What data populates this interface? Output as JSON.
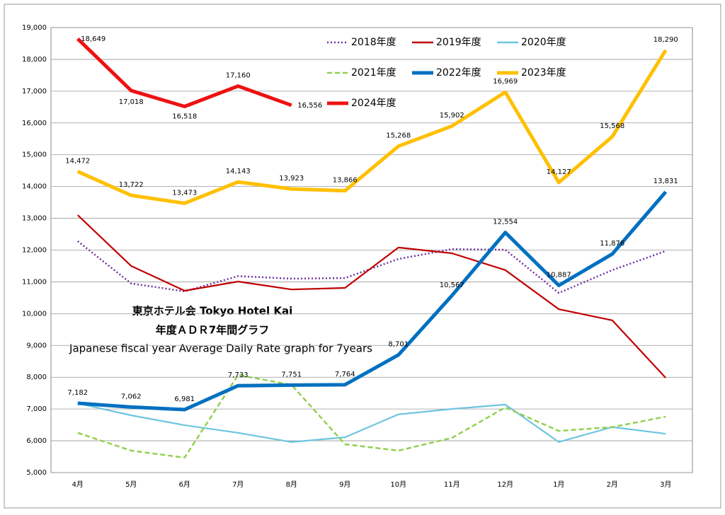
{
  "chart_data": {
    "type": "line",
    "title": "東京ホテル会 Tokyo Hotel Kai",
    "subtitle": "年度ＡＤＲ7年間グラフ",
    "annotation": "Japanese fiscal year Average Daily Rate graph for 7years",
    "categories": [
      "4月",
      "5月",
      "6月",
      "7月",
      "8月",
      "9月",
      "10月",
      "11月",
      "12月",
      "1月",
      "2月",
      "3月"
    ],
    "ylim": [
      5000,
      19000
    ],
    "yticks": [
      {
        "value": 5000,
        "label": "5,000"
      },
      {
        "value": 6000,
        "label": "6,000"
      },
      {
        "value": 7000,
        "label": "7,000"
      },
      {
        "value": 8000,
        "label": "8,000"
      },
      {
        "value": 9000,
        "label": "9,000"
      },
      {
        "value": 10000,
        "label": "10,000"
      },
      {
        "value": 11000,
        "label": "11,000"
      },
      {
        "value": 12000,
        "label": "12,000"
      },
      {
        "value": 13000,
        "label": "13,000"
      },
      {
        "value": 14000,
        "label": "14,000"
      },
      {
        "value": 15000,
        "label": "15,000"
      },
      {
        "value": 16000,
        "label": "16,000"
      },
      {
        "value": 17000,
        "label": "17,000"
      },
      {
        "value": 18000,
        "label": "18,000"
      },
      {
        "value": 19000,
        "label": "19,000"
      }
    ],
    "grid": true,
    "legend": "upper right",
    "series": [
      {
        "name": "2018年度",
        "color": "#7030a0",
        "line_style": "dotted",
        "values": [
          12280,
          10950,
          10700,
          11180,
          11100,
          11120,
          11720,
          12030,
          12010,
          10650,
          11370,
          11970
        ]
      },
      {
        "name": "2019年度",
        "color": "#c00000",
        "line_style": "solid",
        "values": [
          13100,
          11500,
          10720,
          11010,
          10760,
          10810,
          12080,
          11900,
          11370,
          10140,
          9790,
          7980
        ]
      },
      {
        "name": "2020年度",
        "color": "#6cc5e0",
        "line_style": "solid",
        "values": [
          7180,
          6800,
          6490,
          6250,
          5960,
          6110,
          6830,
          7000,
          7140,
          5960,
          6430,
          6220
        ]
      },
      {
        "name": "2021年度",
        "color": "#92d050",
        "line_style": "dashed",
        "values": [
          6250,
          5690,
          5470,
          8070,
          7760,
          5890,
          5690,
          6090,
          7050,
          6310,
          6430,
          6760
        ]
      },
      {
        "name": "2022年度",
        "color": "#0070c0",
        "line_style": "solid",
        "values": [
          7182,
          7062,
          6981,
          7733,
          7751,
          7764,
          8701,
          10567,
          12554,
          10887,
          11876,
          13831
        ],
        "value_labels": [
          "7,182",
          "7,062",
          "6,981",
          "7,733",
          "7,751",
          "7,764",
          "8,701",
          "10,567",
          "12,554",
          "10,887",
          "11,876",
          "13,831"
        ]
      },
      {
        "name": "2023年度",
        "color": "#ffc000",
        "line_style": "solid",
        "values": [
          14472,
          13722,
          13473,
          14143,
          13923,
          13866,
          15268,
          15902,
          16969,
          14127,
          15568,
          18290
        ],
        "value_labels": [
          "14,472",
          "13,722",
          "13,473",
          "14,143",
          "13,923",
          "13,866",
          "15,268",
          "15,902",
          "16,969",
          "14,127",
          "15,568",
          "18,290"
        ]
      },
      {
        "name": "2024年度",
        "color": "#ee1111",
        "line_style": "solid",
        "values": [
          18649,
          17018,
          16518,
          17160,
          16556,
          null,
          null,
          null,
          null,
          null,
          null,
          null
        ],
        "value_labels": [
          "18,649",
          "17,018",
          "16,518",
          "17,160",
          "16,556",
          null,
          null,
          null,
          null,
          null,
          null,
          null
        ]
      }
    ]
  }
}
